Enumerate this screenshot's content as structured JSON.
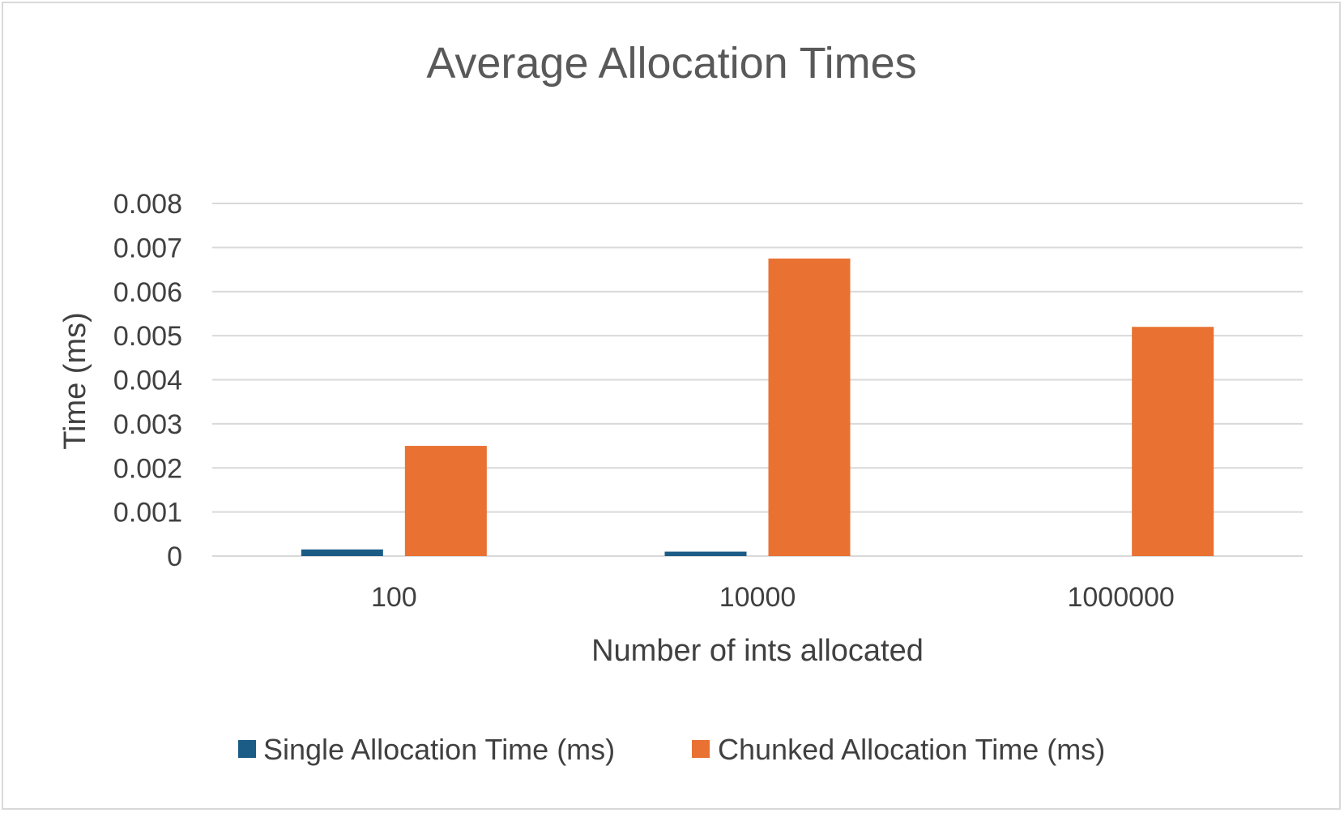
{
  "chart_data": {
    "type": "bar",
    "title": "Average Allocation Times",
    "xlabel": "Number of ints allocated",
    "ylabel": "Time (ms)",
    "categories": [
      "100",
      "10000",
      "1000000"
    ],
    "series": [
      {
        "name": "Single Allocation Time (ms)",
        "color": "#1b5c86",
        "values": [
          0.00015,
          0.0001,
          0.0
        ]
      },
      {
        "name": "Chunked Allocation Time (ms)",
        "color": "#e97132",
        "values": [
          0.0025,
          0.00675,
          0.0052
        ]
      }
    ],
    "ylim": [
      0,
      0.008
    ],
    "yticks": [
      "0",
      "0.001",
      "0.002",
      "0.003",
      "0.004",
      "0.005",
      "0.006",
      "0.007",
      "0.008"
    ],
    "grid": true,
    "legend_position": "bottom",
    "gridline_color": "#d9d9d9"
  }
}
